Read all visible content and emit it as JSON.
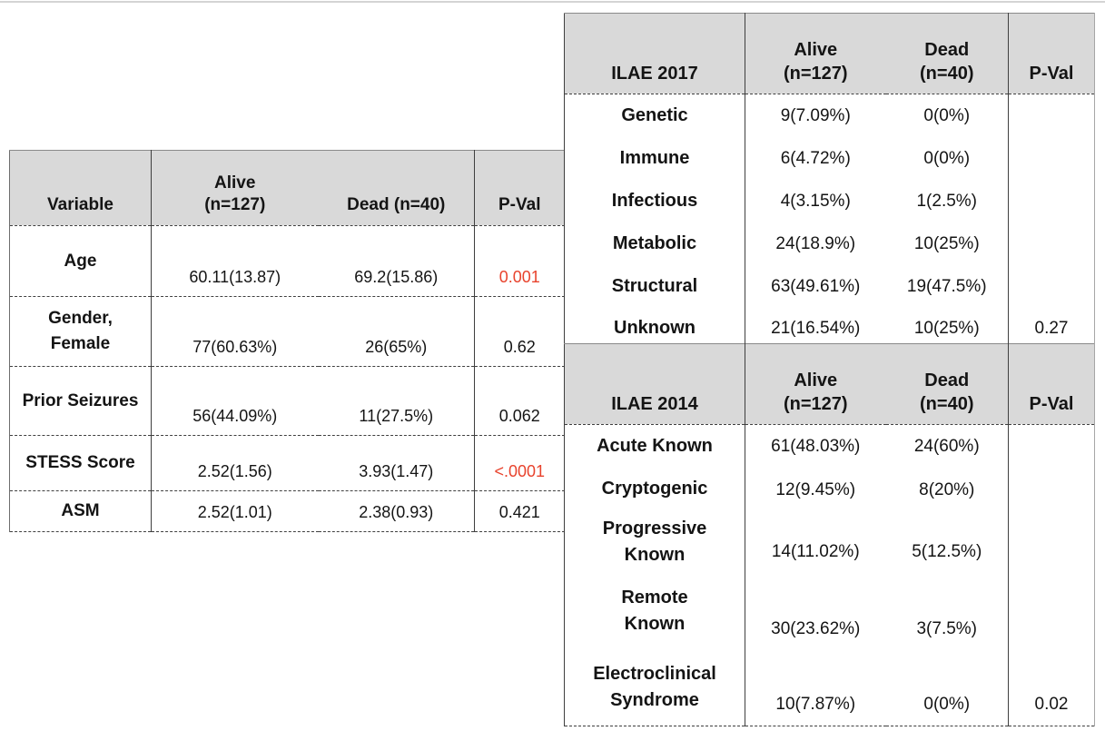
{
  "page": {
    "background": "#ffffff",
    "header_bg": "#d9d9d9",
    "accent_red": "#e8432d",
    "border_dark": "#3f3f3f"
  },
  "demographics_table": {
    "headers": {
      "variable": "Variable",
      "alive": "Alive\n(n=127)",
      "dead": "Dead (n=40)",
      "pval": "P-Val"
    },
    "rows": [
      {
        "label": "Age",
        "alive": "60.11(13.87)",
        "dead": "69.2(15.86)",
        "pval": "0.001"
      },
      {
        "label": "Gender,\nFemale",
        "alive": "77(60.63%)",
        "dead": "26(65%)",
        "pval": "0.62"
      },
      {
        "label": "Prior Seizures",
        "alive": "56(44.09%)",
        "dead": "11(27.5%)",
        "pval": "0.062"
      },
      {
        "label": "STESS Score",
        "alive": "2.52(1.56)",
        "dead": "3.93(1.47)",
        "pval": "<.0001"
      },
      {
        "label": "ASM",
        "alive": "2.52(1.01)",
        "dead": "2.38(0.93)",
        "pval": "0.421"
      }
    ]
  },
  "ilae2017_table": {
    "headers": {
      "group": "ILAE 2017",
      "alive": "Alive\n(n=127)",
      "dead": "Dead\n(n=40)",
      "pval": "P-Val"
    },
    "rows": [
      {
        "label": "Genetic",
        "alive": "9(7.09%)",
        "dead": "0(0%)",
        "pval": ""
      },
      {
        "label": "Immune",
        "alive": "6(4.72%)",
        "dead": "0(0%)",
        "pval": ""
      },
      {
        "label": "Infectious",
        "alive": "4(3.15%)",
        "dead": "1(2.5%)",
        "pval": ""
      },
      {
        "label": "Metabolic",
        "alive": "24(18.9%)",
        "dead": "10(25%)",
        "pval": ""
      },
      {
        "label": "Structural",
        "alive": "63(49.61%)",
        "dead": "19(47.5%)",
        "pval": ""
      },
      {
        "label": "Unknown",
        "alive": "21(16.54%)",
        "dead": "10(25%)",
        "pval": "0.27"
      }
    ]
  },
  "ilae2014_table": {
    "headers": {
      "group": "ILAE 2014",
      "alive": "Alive\n(n=127)",
      "dead": "Dead\n(n=40)",
      "pval": "P-Val"
    },
    "rows": [
      {
        "label": "Acute Known",
        "alive": "61(48.03%)",
        "dead": "24(60%)",
        "pval": ""
      },
      {
        "label": "Cryptogenic",
        "alive": "12(9.45%)",
        "dead": "8(20%)",
        "pval": ""
      },
      {
        "label": "Progressive\nKnown",
        "alive": "14(11.02%)",
        "dead": "5(12.5%)",
        "pval": ""
      },
      {
        "label": "Remote\nKnown",
        "alive": "30(23.62%)",
        "dead": "3(7.5%)",
        "pval": ""
      },
      {
        "label": "Electroclinical\nSyndrome",
        "alive": "10(7.87%)",
        "dead": "0(0%)",
        "pval": "0.02"
      }
    ]
  }
}
